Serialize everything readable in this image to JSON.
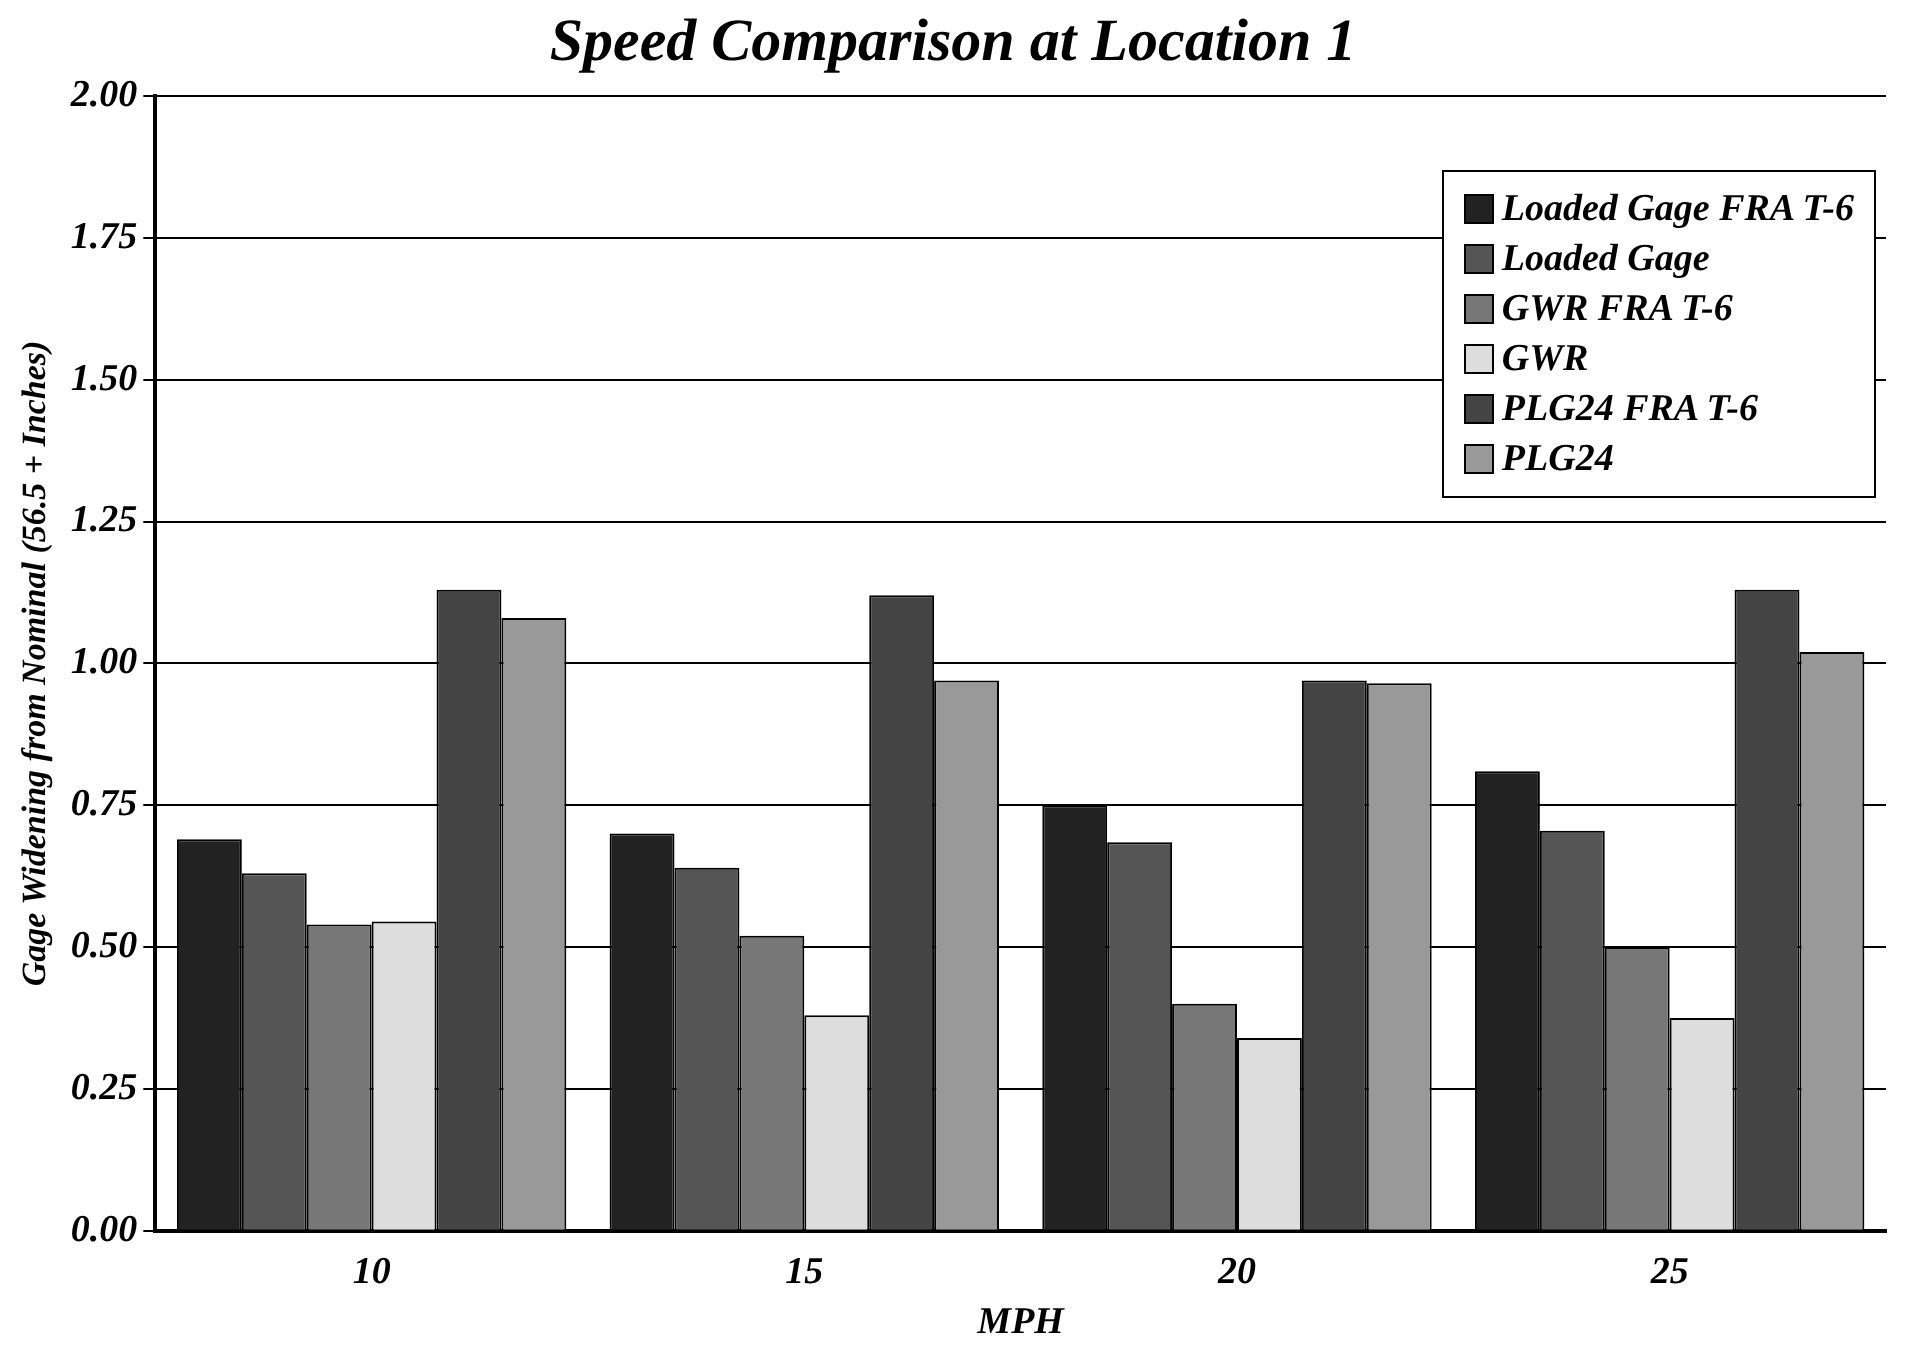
{
  "chart_data": {
    "type": "bar",
    "title": "Speed Comparison at Location 1",
    "xlabel": "MPH",
    "ylabel": "Gage Widening from Nominal (56.5 + Inches)",
    "categories": [
      "10",
      "15",
      "20",
      "25"
    ],
    "series": [
      {
        "name": "Loaded Gage FRA T-6",
        "color": "#222222",
        "values": [
          0.69,
          0.7,
          0.75,
          0.81
        ]
      },
      {
        "name": "Loaded Gage",
        "color": "#555555",
        "values": [
          0.63,
          0.64,
          0.685,
          0.705
        ]
      },
      {
        "name": "GWR FRA T-6",
        "color": "#777777",
        "values": [
          0.54,
          0.52,
          0.4,
          0.5
        ]
      },
      {
        "name": "GWR",
        "color": "#dddddd",
        "values": [
          0.545,
          0.38,
          0.34,
          0.375
        ]
      },
      {
        "name": "PLG24 FRA T-6",
        "color": "#444444",
        "values": [
          1.13,
          1.12,
          0.97,
          1.13
        ]
      },
      {
        "name": "PLG24",
        "color": "#999999",
        "values": [
          1.08,
          0.97,
          0.965,
          1.02
        ]
      }
    ],
    "ylim": [
      0,
      2
    ],
    "yticks": [
      {
        "value": 0,
        "label": "0.00"
      },
      {
        "value": 0.25,
        "label": "0.25"
      },
      {
        "value": 0.5,
        "label": "0.50"
      },
      {
        "value": 0.75,
        "label": "0.75"
      },
      {
        "value": 1,
        "label": "1.00"
      },
      {
        "value": 1.25,
        "label": "1.25"
      },
      {
        "value": 1.5,
        "label": "1.50"
      },
      {
        "value": 1.75,
        "label": "1.75"
      },
      {
        "value": 2,
        "label": "2.00"
      }
    ],
    "grid": "y",
    "legend": "top right"
  }
}
